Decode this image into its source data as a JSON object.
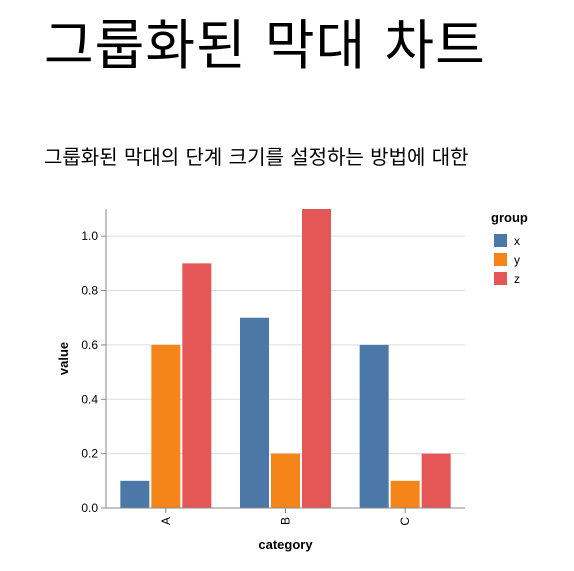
{
  "page": {
    "title": "그룹화된 막대 차트",
    "intro": "그룹화된 막대의 단계 크기를 설정하는 방법에 대한"
  },
  "chart_data": {
    "type": "bar",
    "categories": [
      "A",
      "B",
      "C"
    ],
    "series": [
      {
        "name": "x",
        "values": [
          0.1,
          0.7,
          0.6
        ],
        "color": "#4c78a8"
      },
      {
        "name": "y",
        "values": [
          0.6,
          0.2,
          0.1
        ],
        "color": "#f58518"
      },
      {
        "name": "z",
        "values": [
          0.9,
          1.1,
          0.2
        ],
        "color": "#e45756"
      }
    ],
    "xlabel": "category",
    "ylabel": "value",
    "ylim": [
      0,
      1.1
    ],
    "yticks": [
      0.0,
      0.2,
      0.4,
      0.6,
      0.8,
      1.0
    ],
    "ytick_labels": [
      "0.0",
      "0.2",
      "0.4",
      "0.6",
      "0.8",
      "1.0"
    ],
    "legend": {
      "title": "group",
      "position": "top-right"
    },
    "grid": true
  }
}
